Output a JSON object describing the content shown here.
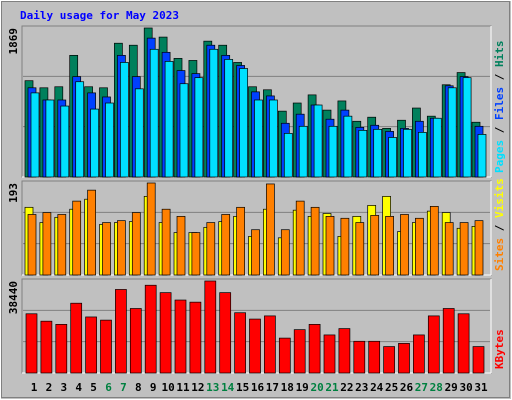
{
  "chart_data": [
    {
      "type": "bar",
      "title": "Daily usage for May 2023",
      "title_color": "#0000ff",
      "ylim": [
        0,
        1869
      ],
      "legend_separator": " / ",
      "series": [
        {
          "name": "Hits",
          "color": "#00805c",
          "values": [
            1208,
            1119,
            1132,
            1526,
            1132,
            1119,
            1678,
            1653,
            1869,
            1755,
            1488,
            1462,
            1704,
            1653,
            1437,
            1132,
            1094,
            826,
            928,
            1030,
            839,
            954,
            699,
            750,
            610,
            712,
            865,
            763,
            1157,
            1310,
            687
          ]
        },
        {
          "name": "Files",
          "color": "#0040ff",
          "values": [
            1119,
            966,
            966,
            1259,
            1055,
            1004,
            1526,
            1259,
            1742,
            1564,
            1335,
            1297,
            1653,
            1526,
            1399,
            1068,
            1017,
            674,
            788,
            903,
            725,
            839,
            623,
            649,
            572,
            610,
            699,
            737,
            1144,
            1259,
            636
          ]
        },
        {
          "name": "Pages",
          "color": "#00e0ff",
          "values": [
            1055,
            966,
            890,
            1195,
            852,
            928,
            1437,
            1106,
            1602,
            1450,
            1170,
            1246,
            1602,
            1475,
            1361,
            966,
            966,
            547,
            636,
            903,
            636,
            763,
            585,
            598,
            496,
            598,
            560,
            737,
            1119,
            1246,
            534
          ]
        }
      ]
    },
    {
      "type": "bar",
      "ylim": [
        0,
        193
      ],
      "legend_separator": " / ",
      "series": [
        {
          "name": "Visits",
          "color": "#ffff00",
          "values": [
            142,
            110,
            121,
            138,
            159,
            106,
            110,
            112,
            165,
            110,
            89,
            89,
            100,
            112,
            123,
            81,
            138,
            78,
            136,
            123,
            129,
            81,
            123,
            146,
            165,
            91,
            110,
            134,
            131,
            98,
            102
          ]
        },
        {
          "name": "Sites",
          "color": "#ff8000",
          "values": [
            127,
            131,
            127,
            155,
            178,
            110,
            114,
            131,
            193,
            138,
            123,
            89,
            110,
            127,
            142,
            95,
            191,
            95,
            155,
            142,
            123,
            119,
            110,
            125,
            123,
            127,
            119,
            144,
            110,
            110,
            114
          ]
        }
      ]
    },
    {
      "type": "bar",
      "ylim": [
        0,
        38440
      ],
      "categories": [
        "1",
        "2",
        "3",
        "4",
        "5",
        "6",
        "7",
        "8",
        "9",
        "10",
        "11",
        "12",
        "13",
        "14",
        "15",
        "16",
        "17",
        "18",
        "19",
        "20",
        "21",
        "22",
        "23",
        "24",
        "25",
        "26",
        "27",
        "28",
        "29",
        "30",
        "31"
      ],
      "label_colors": [
        "#000000",
        "#000000",
        "#000000",
        "#000000",
        "#000000",
        "#008040",
        "#008040",
        "#000000",
        "#000000",
        "#000000",
        "#000000",
        "#000000",
        "#008040",
        "#008040",
        "#000000",
        "#000000",
        "#000000",
        "#000000",
        "#000000",
        "#008040",
        "#008040",
        "#000000",
        "#000000",
        "#000000",
        "#000000",
        "#000000",
        "#008040",
        "#008040",
        "#000000",
        "#000000",
        "#000000"
      ],
      "series": [
        {
          "name": "KBytes",
          "color": "#ff0000",
          "values": [
            24743,
            21650,
            20325,
            29161,
            23418,
            22092,
            34905,
            26952,
            36672,
            33580,
            30487,
            29603,
            38440,
            33580,
            25185,
            22534,
            23859,
            14581,
            18115,
            20325,
            15906,
            18557,
            13255,
            13255,
            11046,
            12372,
            15906,
            23859,
            26952,
            24743,
            11046
          ]
        }
      ]
    }
  ]
}
